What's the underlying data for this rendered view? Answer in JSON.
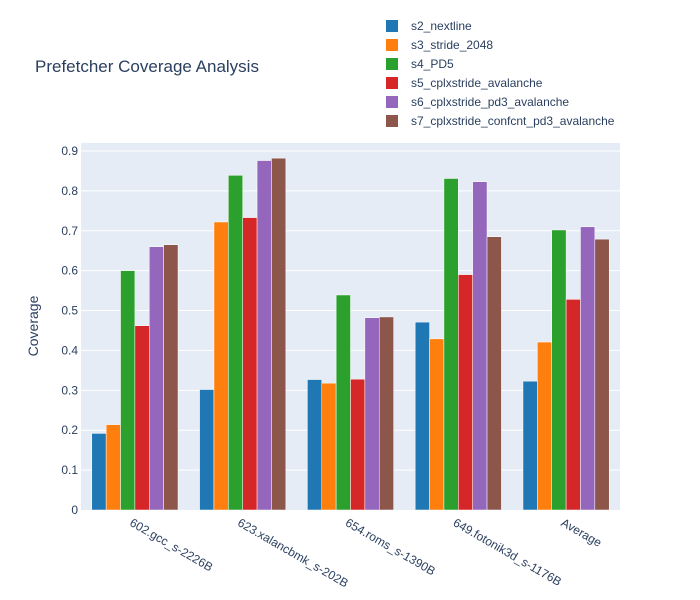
{
  "chart_data": {
    "type": "bar",
    "title": "Prefetcher Coverage Analysis",
    "xlabel": "",
    "ylabel": "Coverage",
    "ylim": [
      0,
      0.92
    ],
    "yticks": [
      0,
      0.1,
      0.2,
      0.3,
      0.4,
      0.5,
      0.6,
      0.7,
      0.8,
      0.9
    ],
    "ytick_labels": [
      "0",
      "0.1",
      "0.2",
      "0.3",
      "0.4",
      "0.5",
      "0.6",
      "0.7",
      "0.8",
      "0.9"
    ],
    "grid": true,
    "legend_position": "top-right",
    "background": "#E5ECF6",
    "categories": [
      "602.gcc_s-2226B",
      "623.xalancbmk_s-202B",
      "654.roms_s-1390B",
      "649.fotonik3d_s-1176B",
      "Average"
    ],
    "series": [
      {
        "name": "s2_nextline",
        "color": "#1f77b4",
        "values": [
          0.192,
          0.302,
          0.327,
          0.471,
          0.323
        ]
      },
      {
        "name": "s3_stride_2048",
        "color": "#ff7f0e",
        "values": [
          0.214,
          0.722,
          0.318,
          0.429,
          0.421
        ]
      },
      {
        "name": "s4_PD5",
        "color": "#2ca02c",
        "values": [
          0.6,
          0.839,
          0.539,
          0.831,
          0.702
        ]
      },
      {
        "name": "s5_cplxstride_avalanche",
        "color": "#d62728",
        "values": [
          0.462,
          0.733,
          0.328,
          0.59,
          0.528
        ]
      },
      {
        "name": "s6_cplxstride_pd3_avalanche",
        "color": "#9467bd",
        "values": [
          0.66,
          0.876,
          0.482,
          0.823,
          0.71
        ]
      },
      {
        "name": "s7_cplxstride_confcnt_pd3_avalanche",
        "color": "#8c564b",
        "values": [
          0.665,
          0.882,
          0.484,
          0.685,
          0.679
        ]
      }
    ]
  }
}
